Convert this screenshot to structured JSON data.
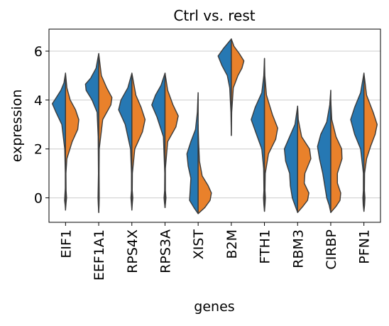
{
  "chart_data": {
    "type": "violin",
    "title": "Ctrl vs. rest",
    "xlabel": "genes",
    "ylabel": "expression",
    "ylim": [
      -1.0,
      6.9
    ],
    "yticks": [
      0,
      2,
      4,
      6
    ],
    "grid": "y",
    "split": true,
    "colors": {
      "left": "#2678b3",
      "right": "#e9812b",
      "edge": "#3b3b3b",
      "grid": "#cccccc"
    },
    "categories": [
      {
        "name": "EIF1",
        "range": [
          -0.5,
          5.1
        ],
        "left": [
          [
            -0.5,
            0.0
          ],
          [
            -0.3,
            0.03
          ],
          [
            -0.1,
            0.07
          ],
          [
            0.1,
            0.05
          ],
          [
            0.4,
            0.02
          ],
          [
            1.0,
            0.02
          ],
          [
            2.0,
            0.06
          ],
          [
            3.0,
            0.28
          ],
          [
            3.5,
            0.72
          ],
          [
            3.85,
            1.0
          ],
          [
            4.1,
            0.7
          ],
          [
            4.4,
            0.35
          ],
          [
            4.7,
            0.12
          ],
          [
            5.1,
            0.0
          ]
        ],
        "right": [
          [
            -0.5,
            0.0
          ],
          [
            -0.2,
            0.04
          ],
          [
            0.0,
            0.08
          ],
          [
            0.3,
            0.04
          ],
          [
            1.0,
            0.03
          ],
          [
            1.6,
            0.1
          ],
          [
            2.3,
            0.5
          ],
          [
            2.8,
            0.92
          ],
          [
            3.2,
            1.0
          ],
          [
            3.6,
            0.75
          ],
          [
            4.0,
            0.35
          ],
          [
            4.5,
            0.1
          ],
          [
            5.1,
            0.0
          ]
        ]
      },
      {
        "name": "EEF1A1",
        "range": [
          -0.6,
          5.9
        ],
        "left": [
          [
            -0.6,
            0.0
          ],
          [
            -0.3,
            0.03
          ],
          [
            0.0,
            0.05
          ],
          [
            1.0,
            0.02
          ],
          [
            2.5,
            0.04
          ],
          [
            3.5,
            0.12
          ],
          [
            4.0,
            0.5
          ],
          [
            4.4,
            0.95
          ],
          [
            4.65,
            1.0
          ],
          [
            4.9,
            0.6
          ],
          [
            5.3,
            0.2
          ],
          [
            5.9,
            0.0
          ]
        ],
        "right": [
          [
            -0.6,
            0.0
          ],
          [
            -0.3,
            0.03
          ],
          [
            0.0,
            0.04
          ],
          [
            1.0,
            0.03
          ],
          [
            2.0,
            0.04
          ],
          [
            3.2,
            0.3
          ],
          [
            3.8,
            0.92
          ],
          [
            4.1,
            1.0
          ],
          [
            4.5,
            0.6
          ],
          [
            5.0,
            0.2
          ],
          [
            5.9,
            0.0
          ]
        ]
      },
      {
        "name": "RPS4X",
        "range": [
          -0.5,
          5.1
        ],
        "left": [
          [
            -0.5,
            0.0
          ],
          [
            -0.2,
            0.04
          ],
          [
            0.0,
            0.07
          ],
          [
            0.3,
            0.03
          ],
          [
            1.0,
            0.03
          ],
          [
            2.0,
            0.1
          ],
          [
            3.0,
            0.5
          ],
          [
            3.6,
            1.0
          ],
          [
            4.0,
            0.82
          ],
          [
            4.5,
            0.3
          ],
          [
            5.1,
            0.0
          ]
        ],
        "right": [
          [
            -0.5,
            0.0
          ],
          [
            -0.2,
            0.04
          ],
          [
            0.0,
            0.07
          ],
          [
            0.3,
            0.03
          ],
          [
            1.0,
            0.04
          ],
          [
            2.0,
            0.22
          ],
          [
            2.7,
            0.8
          ],
          [
            3.2,
            1.0
          ],
          [
            3.7,
            0.7
          ],
          [
            4.2,
            0.3
          ],
          [
            5.1,
            0.0
          ]
        ]
      },
      {
        "name": "RPS3A",
        "range": [
          -0.4,
          5.1
        ],
        "left": [
          [
            -0.4,
            0.0
          ],
          [
            -0.2,
            0.04
          ],
          [
            0.0,
            0.07
          ],
          [
            0.3,
            0.03
          ],
          [
            1.0,
            0.02
          ],
          [
            2.5,
            0.12
          ],
          [
            3.3,
            0.6
          ],
          [
            3.8,
            1.0
          ],
          [
            4.2,
            0.72
          ],
          [
            4.6,
            0.3
          ],
          [
            5.1,
            0.0
          ]
        ],
        "right": [
          [
            -0.4,
            0.0
          ],
          [
            -0.2,
            0.04
          ],
          [
            0.0,
            0.07
          ],
          [
            0.3,
            0.03
          ],
          [
            1.2,
            0.03
          ],
          [
            2.3,
            0.2
          ],
          [
            2.9,
            0.82
          ],
          [
            3.35,
            1.0
          ],
          [
            3.8,
            0.6
          ],
          [
            4.4,
            0.2
          ],
          [
            5.1,
            0.0
          ]
        ]
      },
      {
        "name": "XIST",
        "range": [
          -0.65,
          4.3
        ],
        "left": [
          [
            -0.65,
            0.0
          ],
          [
            -0.4,
            0.32
          ],
          [
            -0.1,
            0.65
          ],
          [
            0.3,
            0.6
          ],
          [
            0.8,
            0.55
          ],
          [
            1.3,
            0.75
          ],
          [
            1.8,
            0.85
          ],
          [
            2.3,
            0.55
          ],
          [
            2.8,
            0.2
          ],
          [
            3.5,
            0.06
          ],
          [
            4.3,
            0.0
          ]
        ],
        "right": [
          [
            -0.65,
            0.0
          ],
          [
            -0.4,
            0.5
          ],
          [
            -0.1,
            0.9
          ],
          [
            0.2,
            1.0
          ],
          [
            0.5,
            0.75
          ],
          [
            0.9,
            0.3
          ],
          [
            1.5,
            0.1
          ],
          [
            2.2,
            0.04
          ],
          [
            3.0,
            0.0
          ]
        ]
      },
      {
        "name": "B2M",
        "range": [
          2.55,
          6.5
        ],
        "left": [
          [
            2.55,
            0.0
          ],
          [
            3.5,
            0.03
          ],
          [
            4.5,
            0.12
          ],
          [
            5.0,
            0.3
          ],
          [
            5.4,
            0.7
          ],
          [
            5.8,
            1.0
          ],
          [
            6.1,
            0.6
          ],
          [
            6.5,
            0.0
          ]
        ],
        "right": [
          [
            2.55,
            0.0
          ],
          [
            3.5,
            0.03
          ],
          [
            4.5,
            0.15
          ],
          [
            5.0,
            0.5
          ],
          [
            5.3,
            0.8
          ],
          [
            5.6,
            0.95
          ],
          [
            5.9,
            0.6
          ],
          [
            6.2,
            0.2
          ],
          [
            6.5,
            0.0
          ]
        ]
      },
      {
        "name": "FTH1",
        "range": [
          -0.55,
          5.7
        ],
        "left": [
          [
            -0.55,
            0.0
          ],
          [
            -0.3,
            0.04
          ],
          [
            0.0,
            0.07
          ],
          [
            0.3,
            0.04
          ],
          [
            1.2,
            0.06
          ],
          [
            2.0,
            0.2
          ],
          [
            2.6,
            0.6
          ],
          [
            3.2,
            1.0
          ],
          [
            3.7,
            0.7
          ],
          [
            4.3,
            0.2
          ],
          [
            5.0,
            0.05
          ],
          [
            5.7,
            0.0
          ]
        ],
        "right": [
          [
            -0.55,
            0.0
          ],
          [
            -0.3,
            0.04
          ],
          [
            0.0,
            0.07
          ],
          [
            0.3,
            0.04
          ],
          [
            1.0,
            0.06
          ],
          [
            1.8,
            0.3
          ],
          [
            2.4,
            0.85
          ],
          [
            2.85,
            1.0
          ],
          [
            3.4,
            0.6
          ],
          [
            4.2,
            0.15
          ],
          [
            5.0,
            0.03
          ],
          [
            5.7,
            0.0
          ]
        ]
      },
      {
        "name": "RBM3",
        "range": [
          -0.6,
          3.75
        ],
        "left": [
          [
            -0.6,
            0.0
          ],
          [
            -0.3,
            0.2
          ],
          [
            0.0,
            0.4
          ],
          [
            0.5,
            0.55
          ],
          [
            1.0,
            0.6
          ],
          [
            1.5,
            0.9
          ],
          [
            2.0,
            1.0
          ],
          [
            2.5,
            0.6
          ],
          [
            3.0,
            0.2
          ],
          [
            3.75,
            0.0
          ]
        ],
        "right": [
          [
            -0.6,
            0.0
          ],
          [
            -0.35,
            0.4
          ],
          [
            -0.1,
            0.75
          ],
          [
            0.2,
            0.85
          ],
          [
            0.6,
            0.5
          ],
          [
            1.0,
            0.55
          ],
          [
            1.6,
            1.0
          ],
          [
            2.0,
            0.9
          ],
          [
            2.5,
            0.3
          ],
          [
            3.2,
            0.05
          ],
          [
            3.75,
            0.0
          ]
        ]
      },
      {
        "name": "CIRBP",
        "range": [
          -0.6,
          4.4
        ],
        "left": [
          [
            -0.6,
            0.0
          ],
          [
            -0.3,
            0.12
          ],
          [
            0.0,
            0.3
          ],
          [
            0.5,
            0.45
          ],
          [
            1.0,
            0.6
          ],
          [
            1.6,
            0.85
          ],
          [
            2.1,
            1.0
          ],
          [
            2.6,
            0.75
          ],
          [
            3.1,
            0.3
          ],
          [
            3.8,
            0.08
          ],
          [
            4.4,
            0.0
          ]
        ],
        "right": [
          [
            -0.6,
            0.0
          ],
          [
            -0.35,
            0.4
          ],
          [
            -0.1,
            0.7
          ],
          [
            0.2,
            0.75
          ],
          [
            0.6,
            0.5
          ],
          [
            1.0,
            0.5
          ],
          [
            1.6,
            0.85
          ],
          [
            2.0,
            0.82
          ],
          [
            2.5,
            0.4
          ],
          [
            3.2,
            0.08
          ],
          [
            4.0,
            0.0
          ]
        ]
      },
      {
        "name": "PFN1",
        "range": [
          -0.55,
          5.1
        ],
        "left": [
          [
            -0.55,
            0.0
          ],
          [
            -0.3,
            0.05
          ],
          [
            0.0,
            0.08
          ],
          [
            0.3,
            0.04
          ],
          [
            1.0,
            0.04
          ],
          [
            2.0,
            0.25
          ],
          [
            2.6,
            0.7
          ],
          [
            3.2,
            1.0
          ],
          [
            3.7,
            0.7
          ],
          [
            4.3,
            0.25
          ],
          [
            5.1,
            0.0
          ]
        ],
        "right": [
          [
            -0.55,
            0.0
          ],
          [
            -0.3,
            0.05
          ],
          [
            0.0,
            0.08
          ],
          [
            0.3,
            0.04
          ],
          [
            1.0,
            0.05
          ],
          [
            1.6,
            0.2
          ],
          [
            2.1,
            0.5
          ],
          [
            2.6,
            0.85
          ],
          [
            3.0,
            1.0
          ],
          [
            3.5,
            0.7
          ],
          [
            4.2,
            0.2
          ],
          [
            5.1,
            0.0
          ]
        ]
      }
    ]
  }
}
